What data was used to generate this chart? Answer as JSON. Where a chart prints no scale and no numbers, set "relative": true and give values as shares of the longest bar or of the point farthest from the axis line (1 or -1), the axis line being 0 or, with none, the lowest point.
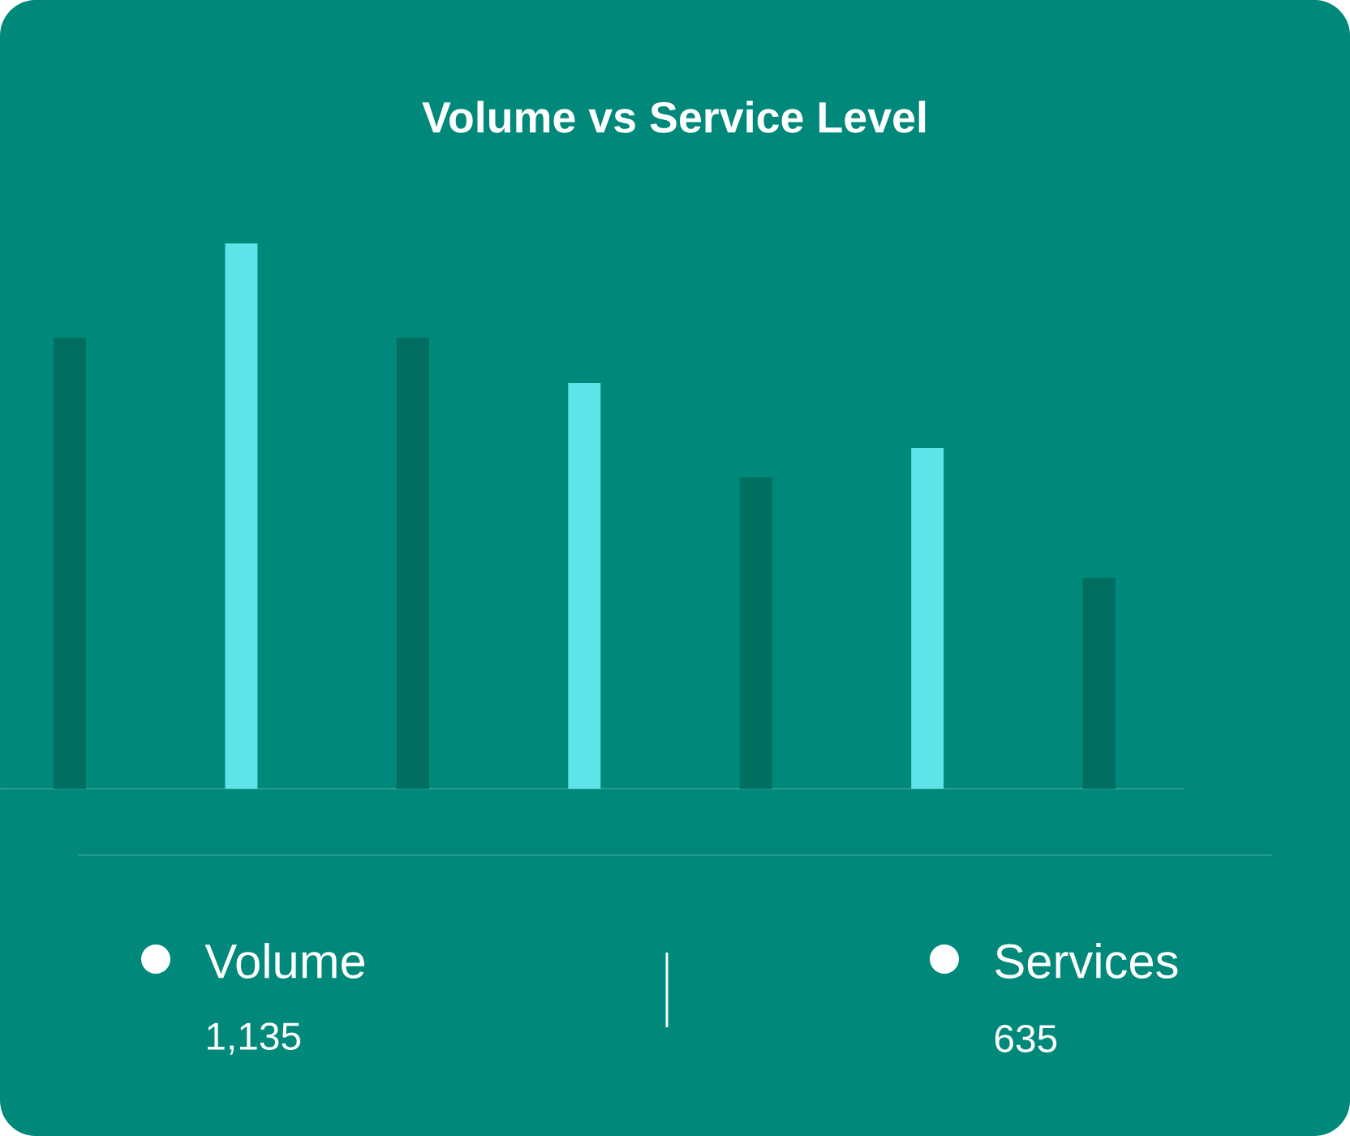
{
  "chart_data": {
    "type": "bar",
    "title": "Volume vs Service Level",
    "relative": true,
    "categories": [
      null,
      null,
      null,
      null,
      null,
      null,
      null
    ],
    "values": [
      0.827,
      1,
      0.827,
      0.744,
      0.571,
      0.625,
      0.387
    ],
    "colors": [
      "#006e60",
      "#5ee3e8",
      "#006e60",
      "#5ee3e8",
      "#006e60",
      "#5ee3e8",
      "#006e60"
    ],
    "annotations": [
      "Volume",
      "1,135",
      "Services",
      "635"
    ]
  }
}
